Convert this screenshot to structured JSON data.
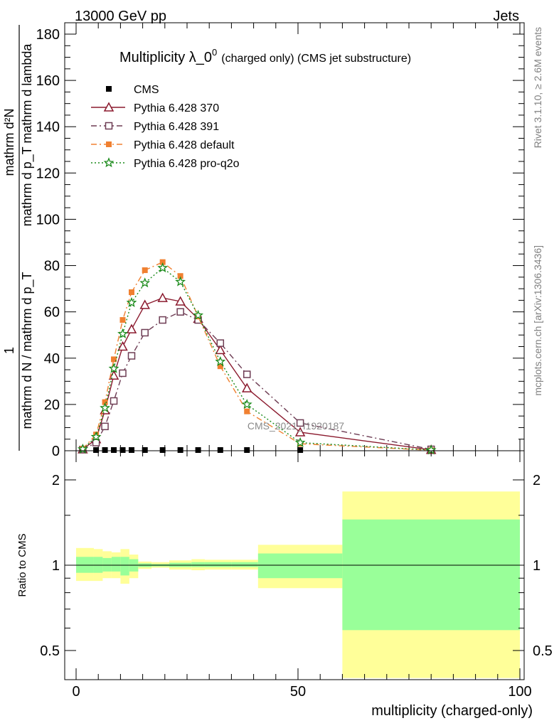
{
  "header": {
    "left": "13000 GeV pp",
    "right": "Jets"
  },
  "side_labels": {
    "rivet": "Rivet 3.1.10, ≥ 2.6M events",
    "mcplots": "mcplots.cern.ch [arXiv:1306.3436]"
  },
  "chart_data": [
    {
      "type": "line",
      "title": "Multiplicity λ_0",
      "title_superscript": "0",
      "title_note": "(charged only) (CMS jet substructure)",
      "watermark": "CMS_2021_I1920187",
      "ylabel_numerator": "mathrm d²N",
      "ylabel_denominator": "mathrm d p_T mathrm d lambda",
      "ylabel_prefix_num": "1",
      "ylabel_prefix_den": "mathrm d N / mathrm d p_T",
      "xlim": [
        0,
        100
      ],
      "ylim": [
        0,
        180
      ],
      "yticks": [
        0,
        20,
        40,
        60,
        80,
        100,
        120,
        140,
        160,
        180
      ],
      "yticklabels": [
        "0",
        "20",
        "40",
        "60",
        "80",
        "100",
        "120",
        "140",
        "160",
        "180"
      ],
      "legend_position": "top-left",
      "series": [
        {
          "name": "CMS",
          "color": "#000000",
          "marker": "square-filled",
          "line": "none",
          "x": [
            1.5,
            4.5,
            6.5,
            8.5,
            10.5,
            12.5,
            15.5,
            19.5,
            23.5,
            27.5,
            32.5,
            38.5,
            50.5,
            80
          ],
          "y": [
            0.3,
            0.3,
            0.3,
            0.3,
            0.3,
            0.3,
            0.3,
            0.3,
            0.3,
            0.3,
            0.3,
            0.3,
            0.3,
            0.1
          ]
        },
        {
          "name": "Pythia 6.428 370",
          "color": "#8b1a2e",
          "marker": "triangle-open",
          "line": "solid",
          "x": [
            1.5,
            4.5,
            6.5,
            8.5,
            10.5,
            12.5,
            15.5,
            19.5,
            23.5,
            27.5,
            32.5,
            38.5,
            50.5,
            80
          ],
          "y": [
            0.6,
            5.0,
            17.5,
            32.5,
            45.0,
            52.5,
            63.0,
            66.0,
            64.5,
            57.0,
            43.5,
            27.0,
            8.0,
            0.4
          ]
        },
        {
          "name": "Pythia 6.428 391",
          "color": "#6e3d54",
          "marker": "square-open",
          "line": "dashdot",
          "x": [
            1.5,
            4.5,
            6.5,
            8.5,
            10.5,
            12.5,
            15.5,
            19.5,
            23.5,
            27.5,
            32.5,
            38.5,
            50.5,
            80
          ],
          "y": [
            0.5,
            3.5,
            10.5,
            21.5,
            33.5,
            41.0,
            51.0,
            56.5,
            60.0,
            56.5,
            46.5,
            33.0,
            12.0,
            0.6
          ]
        },
        {
          "name": "Pythia 6.428 default",
          "color": "#f08030",
          "marker": "square-filled",
          "line": "dashdot",
          "x": [
            1.5,
            4.5,
            6.5,
            8.5,
            10.5,
            12.5,
            15.5,
            19.5,
            23.5,
            27.5,
            32.5,
            38.5,
            50.5,
            80
          ],
          "y": [
            0.8,
            7.0,
            21.0,
            39.5,
            56.5,
            68.5,
            78.0,
            81.5,
            75.5,
            58.0,
            36.5,
            17.0,
            3.0,
            0.2
          ]
        },
        {
          "name": "Pythia 6.428 pro-q2o",
          "color": "#1a8a1a",
          "marker": "star-open",
          "line": "dotted",
          "x": [
            1.5,
            4.5,
            6.5,
            8.5,
            10.5,
            12.5,
            15.5,
            19.5,
            23.5,
            27.5,
            32.5,
            38.5,
            50.5,
            80
          ],
          "y": [
            0.7,
            6.0,
            18.5,
            35.5,
            50.5,
            64.0,
            72.5,
            79.0,
            73.0,
            58.5,
            38.5,
            20.0,
            3.5,
            0.3
          ]
        }
      ]
    },
    {
      "type": "area",
      "ylabel": "Ratio to CMS",
      "xlabel": "multiplicity (charged-only)",
      "xlim": [
        0,
        100
      ],
      "ylim": [
        0.4,
        2.3
      ],
      "log_y": true,
      "xticks": [
        0,
        50,
        100
      ],
      "xticklabels": [
        "0",
        "50",
        "100"
      ],
      "yticks": [
        0.5,
        1,
        2
      ],
      "yticklabels": [
        "0.5",
        "1",
        "2"
      ],
      "reference_line": 1,
      "bins": [
        {
          "lo": 0,
          "hi": 4,
          "inner": [
            0.94,
            1.07
          ],
          "outer": [
            0.88,
            1.15
          ]
        },
        {
          "lo": 4,
          "hi": 6,
          "inner": [
            0.94,
            1.07
          ],
          "outer": [
            0.88,
            1.14
          ]
        },
        {
          "lo": 6,
          "hi": 8,
          "inner": [
            0.95,
            1.06
          ],
          "outer": [
            0.9,
            1.12
          ]
        },
        {
          "lo": 8,
          "hi": 10,
          "inner": [
            0.95,
            1.07
          ],
          "outer": [
            0.9,
            1.11
          ]
        },
        {
          "lo": 10,
          "hi": 12,
          "inner": [
            0.92,
            1.07
          ],
          "outer": [
            0.86,
            1.14
          ]
        },
        {
          "lo": 12,
          "hi": 14,
          "inner": [
            0.95,
            1.05
          ],
          "outer": [
            0.9,
            1.09
          ]
        },
        {
          "lo": 14,
          "hi": 17,
          "inner": [
            0.985,
            1.015
          ],
          "outer": [
            0.97,
            1.03
          ]
        },
        {
          "lo": 17,
          "hi": 21,
          "inner": [
            0.99,
            1.01
          ],
          "outer": [
            0.98,
            1.025
          ]
        },
        {
          "lo": 21,
          "hi": 26,
          "inner": [
            0.985,
            1.02
          ],
          "outer": [
            0.965,
            1.04
          ]
        },
        {
          "lo": 26,
          "hi": 29,
          "inner": [
            0.985,
            1.025
          ],
          "outer": [
            0.96,
            1.05
          ]
        },
        {
          "lo": 29,
          "hi": 35,
          "inner": [
            0.985,
            1.025
          ],
          "outer": [
            0.965,
            1.045
          ]
        },
        {
          "lo": 35,
          "hi": 41,
          "inner": [
            0.985,
            1.025
          ],
          "outer": [
            0.965,
            1.045
          ]
        },
        {
          "lo": 41,
          "hi": 60,
          "inner": [
            0.9,
            1.1
          ],
          "outer": [
            0.83,
            1.18
          ]
        },
        {
          "lo": 60,
          "hi": 100,
          "inner": [
            0.59,
            1.45
          ],
          "outer": [
            0.4,
            1.82
          ]
        }
      ],
      "inner_color": "#99ff99",
      "outer_color": "#ffff99"
    }
  ]
}
